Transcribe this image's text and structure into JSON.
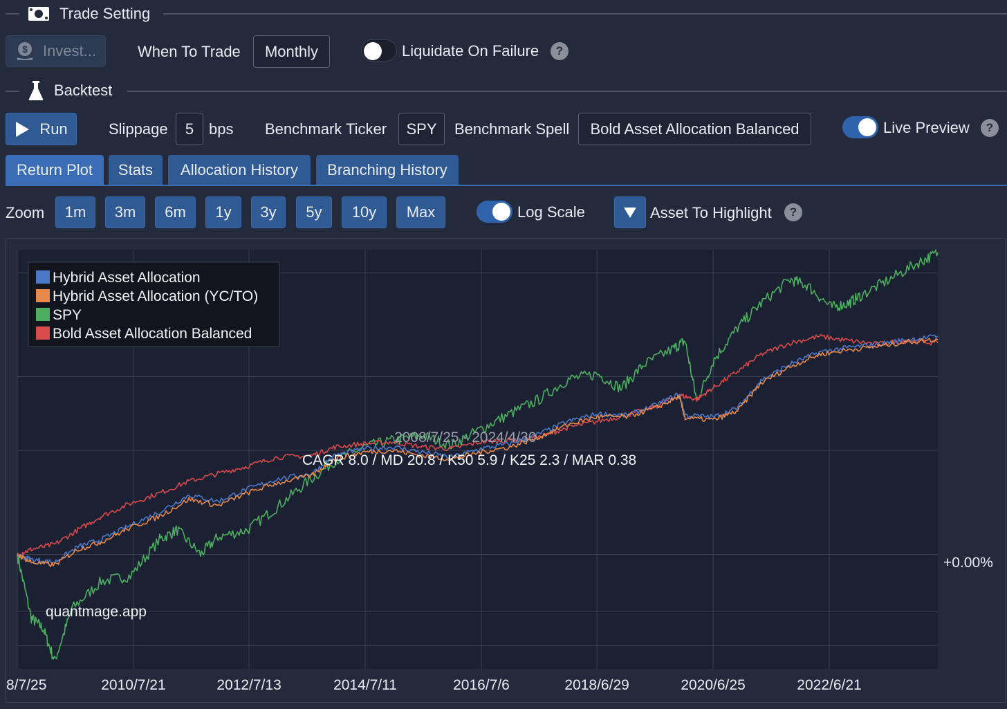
{
  "trade_setting": {
    "title": "Trade Setting",
    "invest_label": "Invest...",
    "when_to_trade_label": "When To Trade",
    "when_to_trade_value": "Monthly",
    "liquidate_label": "Liquidate On Failure",
    "liquidate_on": false
  },
  "backtest": {
    "title": "Backtest",
    "run_label": "Run",
    "slippage_label": "Slippage",
    "slippage_value": "5",
    "slippage_unit": "bps",
    "benchmark_ticker_label": "Benchmark Ticker",
    "benchmark_ticker_value": "SPY",
    "benchmark_spell_label": "Benchmark Spell",
    "benchmark_spell_value": "Bold Asset Allocation Balanced",
    "live_preview_label": "Live Preview",
    "live_preview_on": true
  },
  "tabs": [
    {
      "label": "Return Plot",
      "active": true
    },
    {
      "label": "Stats",
      "active": false
    },
    {
      "label": "Allocation History",
      "active": false
    },
    {
      "label": "Branching History",
      "active": false
    }
  ],
  "zoom": {
    "label": "Zoom",
    "options": [
      "1m",
      "3m",
      "6m",
      "1y",
      "3y",
      "5y",
      "10y",
      "Max"
    ],
    "log_scale_label": "Log Scale",
    "log_scale_on": true,
    "asset_highlight_label": "Asset To Highlight"
  },
  "help_glyph": "?",
  "icons": {
    "trade_setting": "money-icon",
    "invest": "money-bag-icon",
    "backtest": "flask-icon",
    "run": "play-icon",
    "asset_highlight": "triangle-down-icon"
  },
  "colors": {
    "accent": "#2f5a94",
    "hybrid": "#4c78c8",
    "hybrid_ycto": "#e8894a",
    "spy": "#4caf60",
    "bold": "#d94a4a"
  },
  "chart_data": {
    "type": "line",
    "y_scale": "log",
    "x_range": [
      "2008-07-25",
      "2024-04-30"
    ],
    "x_tick_labels": [
      "8/7/25",
      "2010/7/21",
      "2012/7/13",
      "2014/7/11",
      "2016/7/6",
      "2018/6/29",
      "2020/6/25",
      "2022/6/21"
    ],
    "x_tick_years": [
      2008.56,
      2010.55,
      2012.53,
      2014.52,
      2016.51,
      2018.49,
      2020.48,
      2022.47
    ],
    "y_tick_label": "+0.00%",
    "range_annotation": "2008/7/25 - 2024/4/30",
    "stats_annotation": "CAGR 8.0 / MD 20.8 / K50 5.9 / K25 2.3 / MAR 0.38",
    "watermark": "quantmage.app",
    "legend_placement": "top-left",
    "grid": true,
    "series": [
      {
        "name": "Hybrid Asset Allocation",
        "color": "#4c78c8",
        "points": [
          [
            2008.56,
            1.0
          ],
          [
            2008.8,
            0.98
          ],
          [
            2009.2,
            0.97
          ],
          [
            2009.6,
            1.03
          ],
          [
            2010.0,
            1.06
          ],
          [
            2010.5,
            1.12
          ],
          [
            2011.0,
            1.18
          ],
          [
            2011.5,
            1.26
          ],
          [
            2012.0,
            1.23
          ],
          [
            2012.5,
            1.29
          ],
          [
            2013.0,
            1.34
          ],
          [
            2013.6,
            1.37
          ],
          [
            2014.0,
            1.47
          ],
          [
            2014.5,
            1.51
          ],
          [
            2015.0,
            1.52
          ],
          [
            2015.5,
            1.49
          ],
          [
            2016.0,
            1.46
          ],
          [
            2016.5,
            1.51
          ],
          [
            2017.0,
            1.54
          ],
          [
            2017.5,
            1.6
          ],
          [
            2018.0,
            1.68
          ],
          [
            2018.5,
            1.73
          ],
          [
            2019.0,
            1.72
          ],
          [
            2019.5,
            1.79
          ],
          [
            2019.9,
            1.87
          ],
          [
            2020.0,
            1.72
          ],
          [
            2020.5,
            1.71
          ],
          [
            2020.9,
            1.77
          ],
          [
            2021.3,
            1.97
          ],
          [
            2021.8,
            2.1
          ],
          [
            2022.3,
            2.2
          ],
          [
            2022.8,
            2.24
          ],
          [
            2023.3,
            2.27
          ],
          [
            2023.8,
            2.31
          ],
          [
            2024.33,
            2.34
          ]
        ]
      },
      {
        "name": "Hybrid Asset Allocation (YC/TO)",
        "color": "#e8894a",
        "points": [
          [
            2008.56,
            1.0
          ],
          [
            2008.8,
            0.97
          ],
          [
            2009.2,
            0.96
          ],
          [
            2009.6,
            1.02
          ],
          [
            2010.0,
            1.05
          ],
          [
            2010.5,
            1.11
          ],
          [
            2011.0,
            1.16
          ],
          [
            2011.5,
            1.24
          ],
          [
            2012.0,
            1.21
          ],
          [
            2012.5,
            1.27
          ],
          [
            2013.0,
            1.32
          ],
          [
            2013.6,
            1.36
          ],
          [
            2014.0,
            1.45
          ],
          [
            2014.5,
            1.49
          ],
          [
            2015.0,
            1.5
          ],
          [
            2015.5,
            1.47
          ],
          [
            2016.0,
            1.45
          ],
          [
            2016.5,
            1.49
          ],
          [
            2017.0,
            1.52
          ],
          [
            2017.5,
            1.58
          ],
          [
            2018.0,
            1.66
          ],
          [
            2018.5,
            1.71
          ],
          [
            2019.0,
            1.71
          ],
          [
            2019.5,
            1.77
          ],
          [
            2019.9,
            1.85
          ],
          [
            2020.0,
            1.7
          ],
          [
            2020.5,
            1.69
          ],
          [
            2020.9,
            1.75
          ],
          [
            2021.3,
            1.95
          ],
          [
            2021.8,
            2.08
          ],
          [
            2022.3,
            2.18
          ],
          [
            2022.8,
            2.22
          ],
          [
            2023.3,
            2.25
          ],
          [
            2023.8,
            2.29
          ],
          [
            2024.33,
            2.31
          ]
        ]
      },
      {
        "name": "SPY",
        "color": "#4caf60",
        "points": [
          [
            2008.56,
            1.0
          ],
          [
            2008.8,
            0.78
          ],
          [
            2009.0,
            0.75
          ],
          [
            2009.2,
            0.66
          ],
          [
            2009.5,
            0.81
          ],
          [
            2010.0,
            0.9
          ],
          [
            2010.5,
            0.92
          ],
          [
            2011.0,
            1.06
          ],
          [
            2011.3,
            1.1
          ],
          [
            2011.7,
            1.0
          ],
          [
            2012.0,
            1.07
          ],
          [
            2012.5,
            1.1
          ],
          [
            2013.0,
            1.2
          ],
          [
            2013.5,
            1.32
          ],
          [
            2014.0,
            1.44
          ],
          [
            2014.5,
            1.52
          ],
          [
            2015.0,
            1.56
          ],
          [
            2015.5,
            1.59
          ],
          [
            2016.0,
            1.53
          ],
          [
            2016.5,
            1.63
          ],
          [
            2017.0,
            1.73
          ],
          [
            2017.5,
            1.83
          ],
          [
            2018.0,
            1.98
          ],
          [
            2018.5,
            2.02
          ],
          [
            2018.9,
            1.91
          ],
          [
            2019.3,
            2.1
          ],
          [
            2019.8,
            2.23
          ],
          [
            2020.0,
            2.3
          ],
          [
            2020.2,
            1.82
          ],
          [
            2020.5,
            2.14
          ],
          [
            2020.9,
            2.42
          ],
          [
            2021.3,
            2.66
          ],
          [
            2021.8,
            2.92
          ],
          [
            2022.1,
            2.85
          ],
          [
            2022.5,
            2.62
          ],
          [
            2022.8,
            2.66
          ],
          [
            2023.0,
            2.74
          ],
          [
            2023.5,
            2.92
          ],
          [
            2024.0,
            3.12
          ],
          [
            2024.33,
            3.24
          ]
        ]
      },
      {
        "name": "Bold Asset Allocation Balanced",
        "color": "#d94a4a",
        "points": [
          [
            2008.56,
            1.0
          ],
          [
            2008.8,
            1.02
          ],
          [
            2009.2,
            1.04
          ],
          [
            2009.6,
            1.1
          ],
          [
            2010.0,
            1.16
          ],
          [
            2010.5,
            1.22
          ],
          [
            2011.0,
            1.27
          ],
          [
            2011.5,
            1.33
          ],
          [
            2012.0,
            1.37
          ],
          [
            2012.5,
            1.41
          ],
          [
            2013.0,
            1.46
          ],
          [
            2013.6,
            1.47
          ],
          [
            2014.0,
            1.52
          ],
          [
            2014.5,
            1.54
          ],
          [
            2015.0,
            1.55
          ],
          [
            2015.5,
            1.52
          ],
          [
            2016.0,
            1.51
          ],
          [
            2016.5,
            1.55
          ],
          [
            2017.0,
            1.56
          ],
          [
            2017.5,
            1.58
          ],
          [
            2018.0,
            1.64
          ],
          [
            2018.5,
            1.68
          ],
          [
            2019.0,
            1.72
          ],
          [
            2019.5,
            1.78
          ],
          [
            2019.9,
            1.86
          ],
          [
            2020.2,
            1.83
          ],
          [
            2020.5,
            1.92
          ],
          [
            2020.9,
            2.04
          ],
          [
            2021.3,
            2.18
          ],
          [
            2021.8,
            2.28
          ],
          [
            2022.3,
            2.34
          ],
          [
            2022.8,
            2.3
          ],
          [
            2023.3,
            2.27
          ],
          [
            2023.8,
            2.3
          ],
          [
            2024.33,
            2.28
          ]
        ]
      }
    ]
  }
}
